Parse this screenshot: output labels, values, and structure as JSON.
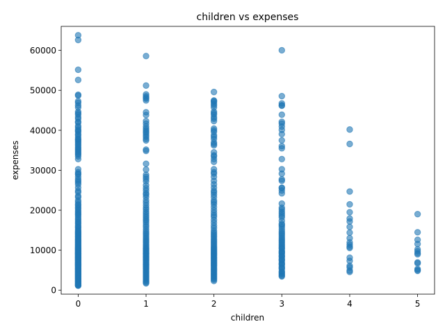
{
  "chart_data": {
    "type": "scatter",
    "title": "children vs expenses",
    "xlabel": "children",
    "ylabel": "expenses",
    "xlim": [
      -0.25,
      5.25
    ],
    "ylim": [
      -1000,
      66000
    ],
    "xticks": [
      0,
      1,
      2,
      3,
      4,
      5
    ],
    "yticks": [
      0,
      10000,
      20000,
      30000,
      40000,
      50000,
      60000
    ],
    "ytick_labels": [
      "0",
      "10000",
      "20000",
      "30000",
      "40000",
      "50000",
      "60000"
    ],
    "grid": false,
    "marker_color": "#1f77b4",
    "marker_alpha": 0.6,
    "points": [
      {
        "children": 0,
        "expenses": [
          63770,
          62593,
          55135,
          52591,
          48885,
          48673,
          47291,
          46889,
          46200,
          45710,
          44642,
          44260,
          43921,
          43254,
          42856,
          42112,
          41919,
          41097,
          40720,
          40182,
          39871,
          39612,
          39047,
          38746,
          38245,
          37829,
          37607,
          37270,
          36950,
          36580,
          36220,
          35800,
          35491,
          35160,
          34838,
          34473,
          34166,
          33900,
          33475,
          32787,
          30260,
          29523,
          29141,
          28950,
          28340,
          27724,
          27346,
          26926,
          26467,
          25656,
          24873,
          24476,
          23568,
          23244,
          22412,
          21984,
          21472,
          21195,
          20745,
          20420,
          20009,
          19673,
          19350,
          19023,
          18767,
          18328,
          17929,
          17560,
          17179,
          16884,
          16577,
          16138,
          15820,
          15555,
          15170,
          14901,
          14711,
          14426,
          14254,
          14001,
          13880,
          13607,
          13430,
          13228,
          13012,
          12815,
          12644,
          12430,
          12265,
          12105,
          11946,
          11737,
          11552,
          11381,
          11212,
          11033,
          10856,
          10704,
          10560,
          10436,
          10325,
          10214,
          10085,
          9964,
          9866,
          9724,
          9625,
          9500,
          9372,
          9255,
          9144,
          9048,
          8964,
          8842,
          8726,
          8604,
          8489,
          8376,
          8258,
          8128,
          8023,
          7919,
          7804,
          7681,
          7563,
          7446,
          7325,
          7209,
          7077,
          6948,
          6828,
          6708,
          6574,
          6450,
          6338,
          6214,
          6083,
          5955,
          5819,
          5683,
          5562,
          5426,
          5290,
          5150,
          5012,
          4880,
          4737,
          4600,
          4460,
          4318,
          4175,
          4030,
          3893,
          3756,
          3612,
          3470,
          3331,
          3189,
          3046,
          2902,
          2770,
          2620,
          2480,
          2330,
          2200,
          2063,
          1930,
          1780,
          1640,
          1510,
          1370,
          1250,
          1140,
          1121
        ]
      },
      {
        "children": 1,
        "expenses": [
          58571,
          51194,
          48970,
          48517,
          48173,
          47896,
          47462,
          44501,
          43813,
          42303,
          41661,
          40941,
          40419,
          40003,
          39597,
          39241,
          38746,
          38344,
          37829,
          37466,
          35160,
          34838,
          31620,
          30166,
          28868,
          28340,
          27808,
          27218,
          26236,
          25517,
          24915,
          24227,
          23887,
          23306,
          22462,
          21880,
          21232,
          20630,
          20177,
          19594,
          19144,
          18648,
          18218,
          17748,
          17361,
          16884,
          16297,
          15820,
          15230,
          14711,
          14254,
          13880,
          13430,
          13012,
          12644,
          12265,
          11946,
          11552,
          11212,
          10856,
          10560,
          10325,
          10085,
          9866,
          9625,
          9372,
          9144,
          8964,
          8726,
          8489,
          8258,
          8023,
          7804,
          7563,
          7325,
          7077,
          6828,
          6574,
          6338,
          6083,
          5819,
          5562,
          5290,
          5012,
          4737,
          4460,
          4175,
          3893,
          3612,
          3331,
          3046,
          2770,
          2480,
          2200,
          1930,
          1711
        ]
      },
      {
        "children": 2,
        "expenses": [
          49577,
          47462,
          47305,
          47055,
          46599,
          46200,
          45710,
          44642,
          44260,
          43921,
          43254,
          42856,
          42303,
          40419,
          40003,
          39597,
          38746,
          38344,
          37829,
          36950,
          36580,
          36220,
          34473,
          33750,
          33475,
          32787,
          32108,
          30260,
          29523,
          29141,
          28340,
          27346,
          26467,
          25656,
          24873,
          24476,
          23887,
          23244,
          22412,
          21984,
          21472,
          20745,
          20009,
          19350,
          18767,
          18328,
          17560,
          16884,
          16138,
          15555,
          14901,
          14426,
          14001,
          13607,
          13228,
          12815,
          12430,
          12105,
          11737,
          11381,
          11033,
          10704,
          10436,
          10214,
          9964,
          9724,
          9500,
          9255,
          9048,
          8842,
          8604,
          8376,
          8128,
          7919,
          7681,
          7446,
          7209,
          6948,
          6708,
          6450,
          6214,
          5955,
          5683,
          5426,
          5150,
          4880,
          4600,
          4318,
          4030,
          3756,
          3470,
          3189,
          2902,
          2620,
          2304
        ]
      },
      {
        "children": 3,
        "expenses": [
          60021,
          48549,
          46719,
          46255,
          46130,
          43896,
          42112,
          41676,
          40932,
          40103,
          39047,
          37484,
          36021,
          35491,
          32787,
          30260,
          29141,
          27724,
          27346,
          25656,
          25517,
          24915,
          24227,
          21659,
          20630,
          20177,
          19594,
          19144,
          18648,
          18218,
          17361,
          16577,
          16297,
          15820,
          15230,
          14711,
          14254,
          13880,
          13430,
          13012,
          12644,
          12265,
          11946,
          11552,
          11212,
          10856,
          10560,
          10325,
          9866,
          9625,
          9372,
          9144,
          8726,
          8489,
          8258,
          7804,
          7563,
          7325,
          6828,
          6574,
          6338,
          5819,
          5562,
          5290,
          4737,
          4460,
          4175,
          3893,
          3612,
          3443
        ]
      },
      {
        "children": 4,
        "expenses": [
          40182,
          36580,
          24671,
          21472,
          19496,
          17929,
          17179,
          15820,
          14394,
          13012,
          11946,
          11381,
          10856,
          10560,
          8128,
          7325,
          6083,
          5683,
          4880,
          4561
        ]
      },
      {
        "children": 5,
        "expenses": [
          19023,
          14478,
          12592,
          11552,
          10214,
          9724,
          9255,
          8964,
          6948,
          6708,
          5290,
          5012,
          4830
        ]
      }
    ]
  }
}
